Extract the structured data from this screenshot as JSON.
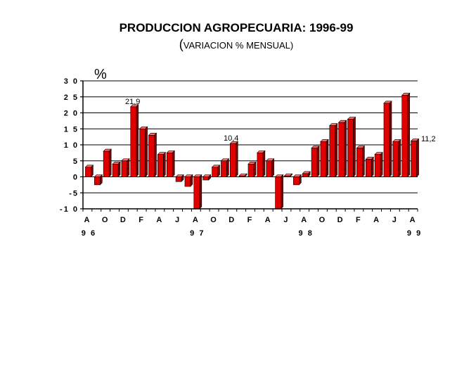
{
  "chart_data": {
    "type": "bar",
    "title": "PRODUCCION AGROPECUARIA: 1996-99",
    "subtitle_open": "(",
    "subtitle_text": "VARIACION % MENSUAL)",
    "ylabel": "%",
    "ylim": [
      -10,
      30
    ],
    "yticks": [
      "3 0",
      "2 5",
      "2 0",
      "1 5",
      "1 0",
      "5",
      "0",
      "-5",
      "-1 0"
    ],
    "ytick_values": [
      30,
      25,
      20,
      15,
      10,
      5,
      0,
      -5,
      -10
    ],
    "xtick_months": [
      "A",
      "O",
      "D",
      "F",
      "A",
      "J",
      "A",
      "O",
      "D",
      "F",
      "A",
      "J",
      "A",
      "O",
      "D",
      "F",
      "A",
      "J",
      "A"
    ],
    "xtick_years": [
      "9 6",
      "9 7",
      "9 8",
      "9 9"
    ],
    "grid": true,
    "series": [
      {
        "values": [
          3,
          -2.5,
          8,
          4,
          5,
          21.9,
          15,
          13,
          7,
          7.5,
          -1.5,
          -3,
          -10,
          -1,
          3,
          5,
          10.4,
          0.3,
          4,
          7.5,
          5,
          -10,
          0.3,
          -2.5,
          1,
          9,
          11,
          16,
          17,
          18,
          9,
          5.5,
          7,
          23,
          11,
          25.5,
          11.2
        ]
      }
    ],
    "annotations": [
      "21,9",
      "10,4",
      "11,2"
    ],
    "bar_color": "#e00000"
  }
}
